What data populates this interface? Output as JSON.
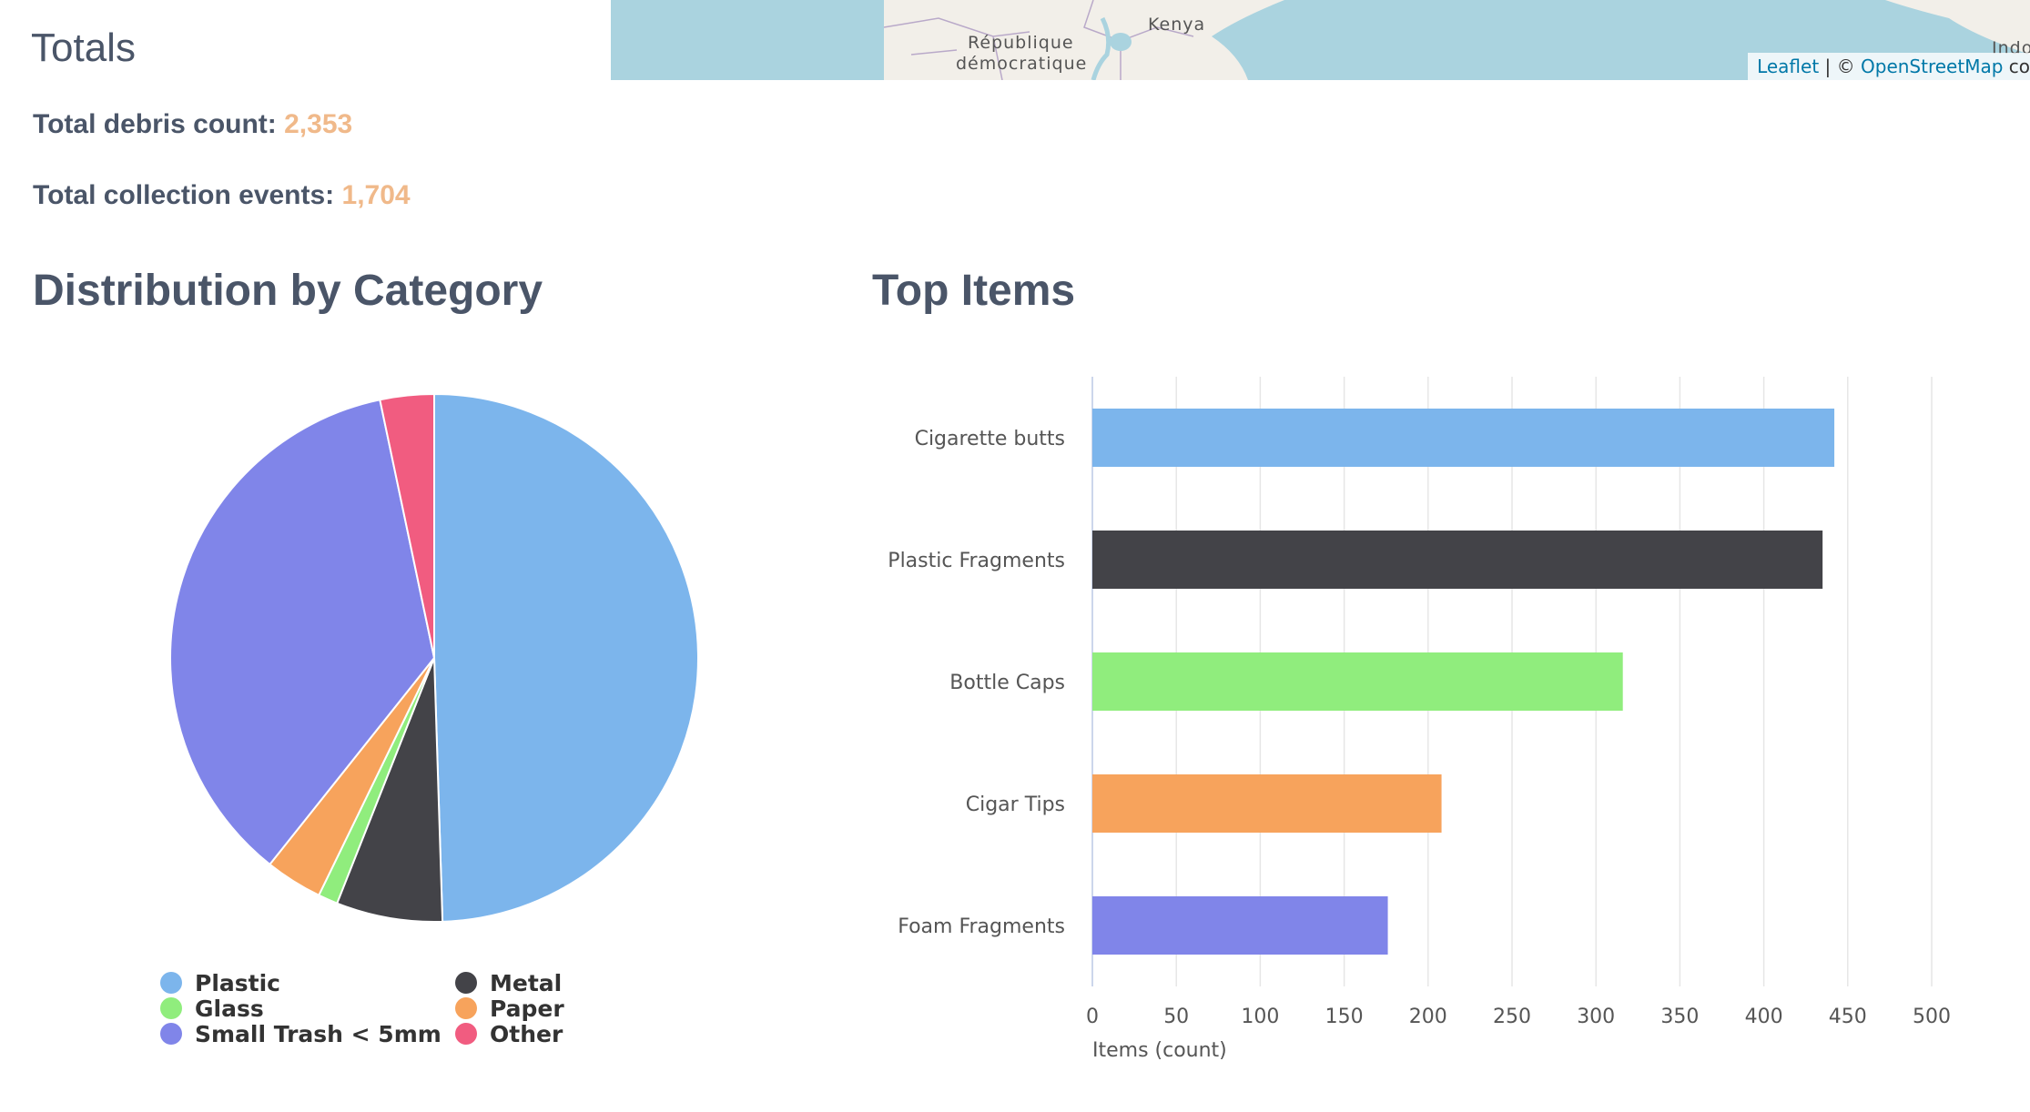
{
  "map": {
    "labels": [
      "République",
      "démocratique",
      "Kenya",
      "Indo"
    ],
    "attribution": {
      "link1": "Leaflet",
      "sep": " | © ",
      "link2": "OpenStreetMap",
      "suffix": " co"
    }
  },
  "totals": {
    "title": "Totals",
    "debris_label": "Total debris count:",
    "debris_value": "2,353",
    "events_label": "Total collection events:",
    "events_value": "1,704"
  },
  "sections": {
    "distribution_title": "Distribution by Category",
    "top_items_title": "Top Items"
  },
  "chart_data": [
    {
      "type": "pie",
      "title": "Distribution by Category",
      "categories": [
        "Plastic",
        "Metal",
        "Glass",
        "Paper",
        "Small Trash < 5mm",
        "Other"
      ],
      "values": [
        49.5,
        6.5,
        1.2,
        3.5,
        36.0,
        3.3
      ],
      "colors": [
        "#7cb5ec",
        "#434348",
        "#90ed7d",
        "#f7a35c",
        "#8085e9",
        "#f15c80"
      ],
      "legend_order": [
        "Plastic",
        "Metal",
        "Glass",
        "Paper",
        "Small Trash < 5mm",
        "Other"
      ],
      "legend_placement": "bottom"
    },
    {
      "type": "bar",
      "orientation": "horizontal",
      "title": "Top Items",
      "categories": [
        "Cigarette butts",
        "Plastic Fragments",
        "Bottle Caps",
        "Cigar Tips",
        "Foam Fragments"
      ],
      "values": [
        442,
        435,
        316,
        208,
        176
      ],
      "colors": [
        "#7cb5ec",
        "#434348",
        "#90ed7d",
        "#f7a35c",
        "#8085e9"
      ],
      "xlabel": "Items (count)",
      "xlim": [
        0,
        500
      ],
      "xticks": [
        0,
        50,
        100,
        150,
        200,
        250,
        300,
        350,
        400,
        450,
        500
      ],
      "grid": true
    }
  ]
}
